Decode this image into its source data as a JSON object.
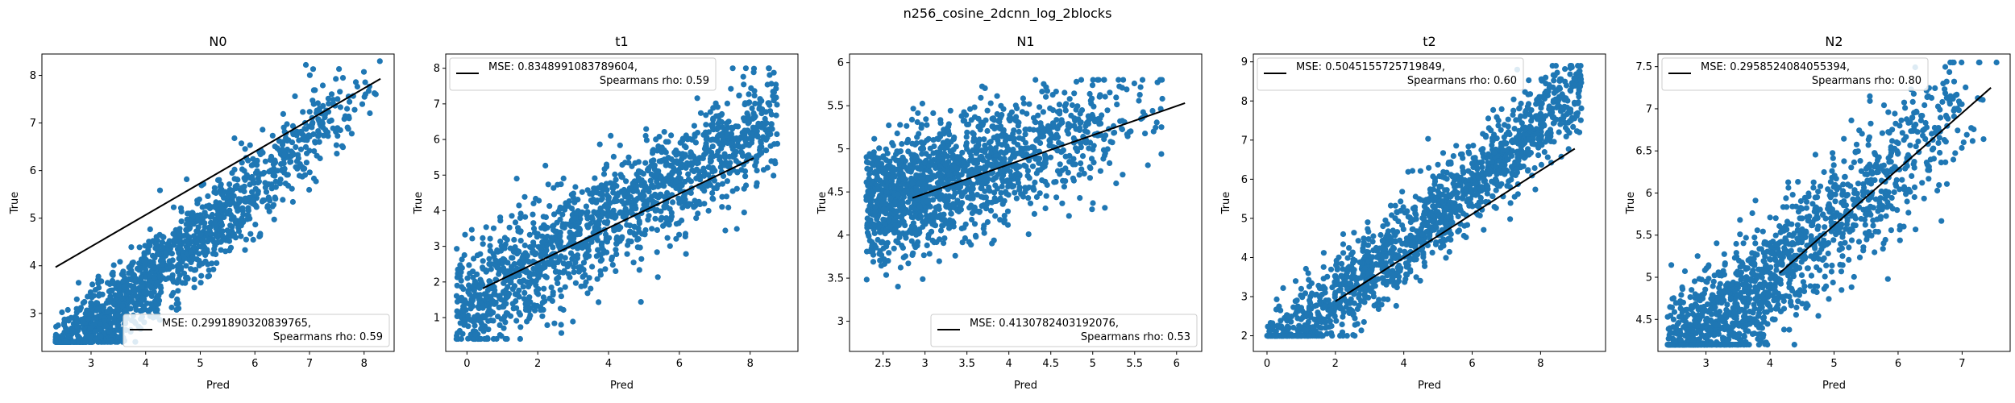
{
  "figure": {
    "suptitle": "n256_cosine_2dcnn_log_2blocks"
  },
  "chart_data": [
    {
      "type": "scatter",
      "title": "N0",
      "xlabel": "Pred",
      "ylabel": "True",
      "xlim": [
        2.1,
        8.55
      ],
      "ylim": [
        2.2,
        8.45
      ],
      "xticks": [
        3,
        4,
        5,
        6,
        7,
        8
      ],
      "yticks": [
        3,
        4,
        5,
        6,
        7,
        8
      ],
      "fit_line": {
        "x": [
          2.35,
          8.3
        ],
        "y": [
          3.97,
          7.93
        ]
      },
      "legend": {
        "line1": "MSE: 0.2991890320839765,",
        "line2": "Spearmans rho: 0.59",
        "loc": "lower right"
      },
      "point_color": "#1f77b4",
      "cloud": {
        "n": 1500,
        "x_range": [
          2.35,
          8.3
        ],
        "x_skew": 0.55,
        "slope": 1.02,
        "intercept": -0.45,
        "noise": 0.45,
        "clip_y": [
          2.4,
          8.3
        ],
        "seed": 11
      }
    },
    {
      "type": "scatter",
      "title": "t1",
      "xlabel": "Pred",
      "ylabel": "True",
      "xlim": [
        -0.6,
        9.35
      ],
      "ylim": [
        0.05,
        8.4
      ],
      "xticks": [
        0,
        2,
        4,
        6,
        8
      ],
      "yticks": [
        1,
        2,
        3,
        4,
        5,
        6,
        7,
        8
      ],
      "fit_line": {
        "x": [
          0.45,
          8.1
        ],
        "y": [
          1.82,
          5.48
        ]
      },
      "legend": {
        "line1": "MSE: 0.8348991083789604,",
        "line2": "Spearmans rho: 0.59",
        "loc": "upper left"
      },
      "point_color": "#1f77b4",
      "cloud": {
        "n": 1500,
        "x_range": [
          -0.3,
          8.8
        ],
        "x_skew": 0.9,
        "slope": 0.62,
        "intercept": 1.3,
        "noise": 0.8,
        "clip_y": [
          0.4,
          8.0
        ],
        "seed": 23
      }
    },
    {
      "type": "scatter",
      "title": "N1",
      "xlabel": "Pred",
      "ylabel": "True",
      "xlim": [
        2.1,
        6.3
      ],
      "ylim": [
        2.65,
        6.1
      ],
      "xticks": [
        2.5,
        3.0,
        3.5,
        4.0,
        4.5,
        5.0,
        5.5,
        6.0
      ],
      "yticks": [
        3.0,
        3.5,
        4.0,
        4.5,
        5.0,
        5.5,
        6.0
      ],
      "fit_line": {
        "x": [
          2.85,
          6.1
        ],
        "y": [
          4.43,
          5.53
        ]
      },
      "legend": {
        "line1": "MSE: 0.4130782403192076,",
        "line2": "Spearmans rho: 0.53",
        "loc": "lower right"
      },
      "point_color": "#1f77b4",
      "cloud": {
        "n": 1500,
        "x_range": [
          2.3,
          6.1
        ],
        "x_skew": 0.45,
        "slope": 0.33,
        "intercept": 3.55,
        "noise": 0.35,
        "clip_y": [
          2.75,
          5.8
        ],
        "seed": 37
      }
    },
    {
      "type": "scatter",
      "title": "t2",
      "xlabel": "Pred",
      "ylabel": "True",
      "xlim": [
        -0.4,
        9.9
      ],
      "ylim": [
        1.6,
        9.2
      ],
      "xticks": [
        0,
        2,
        4,
        6,
        8
      ],
      "yticks": [
        2,
        3,
        4,
        5,
        6,
        7,
        8,
        9
      ],
      "fit_line": {
        "x": [
          2.0,
          9.0
        ],
        "y": [
          2.88,
          6.78
        ]
      },
      "legend": {
        "line1": "MSE: 0.5045155725719849,",
        "line2": "Spearmans rho: 0.60",
        "loc": "upper left"
      },
      "point_color": "#1f77b4",
      "cloud": {
        "n": 1500,
        "x_range": [
          0.0,
          9.2
        ],
        "x_skew": 1.0,
        "slope": 0.75,
        "intercept": 1.4,
        "noise": 0.55,
        "clip_y": [
          2.0,
          8.9
        ],
        "seed": 51
      }
    },
    {
      "type": "scatter",
      "title": "N2",
      "xlabel": "Pred",
      "ylabel": "True",
      "xlim": [
        2.25,
        7.75
      ],
      "ylim": [
        4.12,
        7.65
      ],
      "xticks": [
        3,
        4,
        5,
        6,
        7
      ],
      "yticks": [
        4.5,
        5.0,
        5.5,
        6.0,
        6.5,
        7.0,
        7.5
      ],
      "fit_line": {
        "x": [
          4.15,
          7.45
        ],
        "y": [
          5.05,
          7.25
        ]
      },
      "legend": {
        "line1": "MSE: 0.2958524084055394,",
        "line2": "Spearmans rho: 0.80",
        "loc": "upper left"
      },
      "point_color": "#1f77b4",
      "cloud": {
        "n": 1500,
        "x_range": [
          2.4,
          7.55
        ],
        "x_skew": 0.5,
        "slope": 0.67,
        "intercept": 2.3,
        "noise": 0.38,
        "clip_y": [
          4.2,
          7.55
        ],
        "seed": 67
      }
    }
  ]
}
